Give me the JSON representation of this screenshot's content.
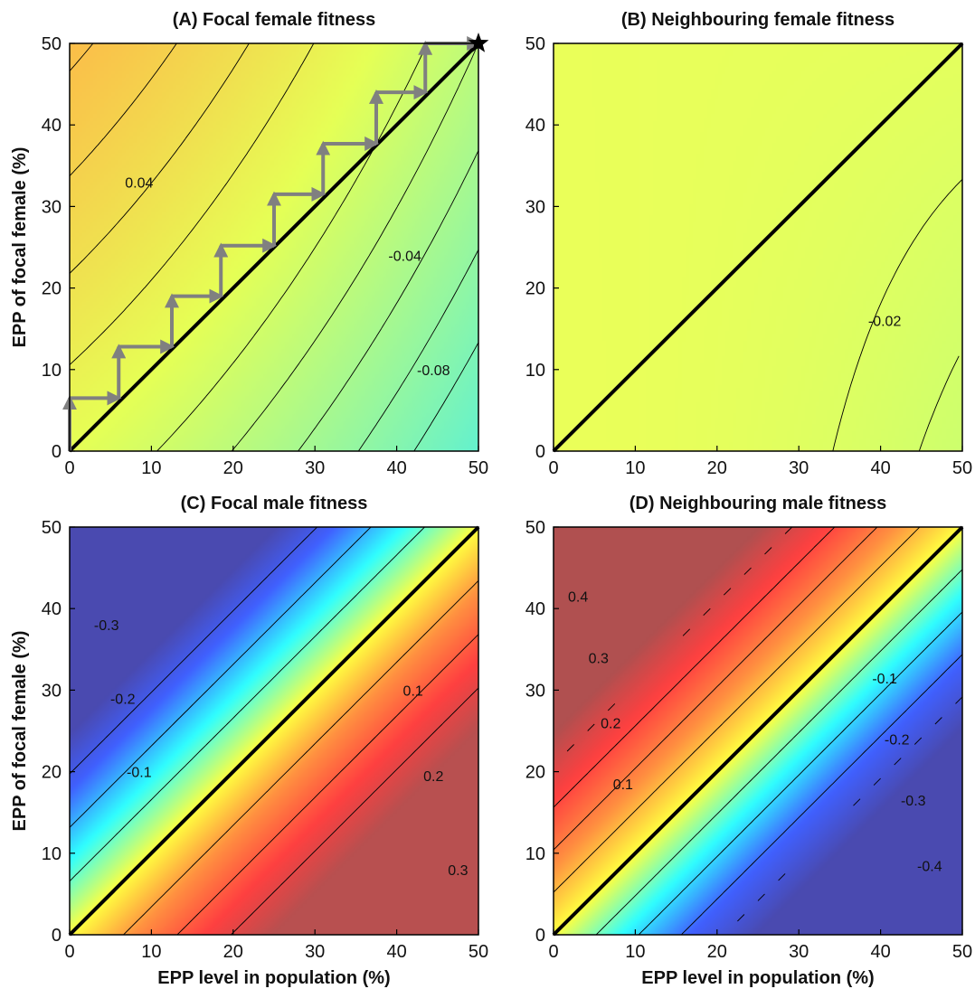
{
  "figure": {
    "x_axis_label": "EPP level in population (%)",
    "y_axis_label": "EPP of focal female (%)"
  },
  "chart_data": [
    {
      "type": "heatmap",
      "panel": "A",
      "title": "(A) Focal female fitness",
      "xlim": [
        0,
        50
      ],
      "ylim": [
        0,
        50
      ],
      "xticks": [
        "0",
        "10",
        "20",
        "30",
        "40",
        "50"
      ],
      "yticks": [
        "0",
        "10",
        "20",
        "30",
        "40",
        "50"
      ],
      "color_stops": [
        {
          "value": 0.1,
          "color": "#FFB347"
        },
        {
          "value": 0.0,
          "color": "#E6FF55"
        },
        {
          "value": -0.14,
          "color": "#55F0DC"
        }
      ],
      "contour_labels": [
        {
          "text": "0.04",
          "x": 8.5,
          "y": 33
        },
        {
          "text": "-0.04",
          "x": 41,
          "y": 24
        },
        {
          "text": "-0.08",
          "x": 44.5,
          "y": 10
        }
      ],
      "diagonal": [
        [
          0,
          0
        ],
        [
          50,
          50
        ]
      ],
      "staircase": [
        [
          0,
          0
        ],
        [
          0,
          6.5
        ],
        [
          6,
          6.5
        ],
        [
          6,
          12.8
        ],
        [
          12.5,
          12.8
        ],
        [
          12.5,
          19
        ],
        [
          18.5,
          19
        ],
        [
          18.5,
          25.2
        ],
        [
          25,
          25.2
        ],
        [
          25,
          31.5
        ],
        [
          31,
          31.5
        ],
        [
          31,
          37.7
        ],
        [
          37.5,
          37.7
        ],
        [
          37.5,
          44
        ],
        [
          43.5,
          44
        ],
        [
          43.5,
          50
        ],
        [
          50,
          50
        ]
      ],
      "endpoint_marker": [
        50,
        50
      ],
      "xlabel": "",
      "ylabel": "EPP of focal female (%)"
    },
    {
      "type": "heatmap",
      "panel": "B",
      "title": "(B) Neighbouring female fitness",
      "xlim": [
        0,
        50
      ],
      "ylim": [
        0,
        50
      ],
      "xticks": [
        "0",
        "10",
        "20",
        "30",
        "40",
        "50"
      ],
      "yticks": [
        "0",
        "10",
        "20",
        "30",
        "40",
        "50"
      ],
      "color_stops": [
        {
          "value": 0.005,
          "color": "#EBFF58"
        },
        {
          "value": -0.03,
          "color": "#C9FF70"
        }
      ],
      "contour_labels": [
        {
          "text": "-0.02",
          "x": 40.5,
          "y": 16
        }
      ],
      "diagonal": [
        [
          0,
          0
        ],
        [
          50,
          50
        ]
      ],
      "xlabel": "",
      "ylabel": ""
    },
    {
      "type": "heatmap",
      "panel": "C",
      "title": "(C) Focal male fitness",
      "xlim": [
        0,
        50
      ],
      "ylim": [
        0,
        50
      ],
      "xticks": [
        "0",
        "10",
        "20",
        "30",
        "40",
        "50"
      ],
      "yticks": [
        "0",
        "10",
        "20",
        "30",
        "40",
        "50"
      ],
      "color_stops": [
        {
          "value": 0.38,
          "color": "#B85050"
        },
        {
          "value": 0.25,
          "color": "#FF4040"
        },
        {
          "value": 0.12,
          "color": "#FF9040"
        },
        {
          "value": 0.0,
          "color": "#FFFF40"
        },
        {
          "value": -0.14,
          "color": "#30FFFF"
        },
        {
          "value": -0.27,
          "color": "#4060FF"
        },
        {
          "value": -0.38,
          "color": "#4A4AB0"
        }
      ],
      "contour_labels": [
        {
          "text": "-0.3",
          "x": 4.5,
          "y": 38
        },
        {
          "text": "-0.2",
          "x": 6.5,
          "y": 29
        },
        {
          "text": "-0.1",
          "x": 8.5,
          "y": 20
        },
        {
          "text": "0.1",
          "x": 42,
          "y": 30
        },
        {
          "text": "0.2",
          "x": 44.5,
          "y": 19.5
        },
        {
          "text": "0.3",
          "x": 47.5,
          "y": 8
        }
      ],
      "diagonal": [
        [
          0,
          0
        ],
        [
          50,
          50
        ]
      ],
      "xlabel": "EPP level in population (%)",
      "ylabel": "EPP of focal female (%)"
    },
    {
      "type": "heatmap",
      "panel": "D",
      "title": "(D) Neighbouring male fitness",
      "xlim": [
        0,
        50
      ],
      "ylim": [
        0,
        50
      ],
      "xticks": [
        "0",
        "10",
        "20",
        "30",
        "40",
        "50"
      ],
      "yticks": [
        "0",
        "10",
        "20",
        "30",
        "40",
        "50"
      ],
      "color_stops": [
        {
          "value": 0.48,
          "color": "#B05050"
        },
        {
          "value": 0.32,
          "color": "#FF4040"
        },
        {
          "value": 0.16,
          "color": "#FF9040"
        },
        {
          "value": 0.0,
          "color": "#FFFF40"
        },
        {
          "value": -0.16,
          "color": "#30FFFF"
        },
        {
          "value": -0.32,
          "color": "#4060FF"
        },
        {
          "value": -0.48,
          "color": "#4A4AB0"
        }
      ],
      "contour_labels": [
        {
          "text": "0.4",
          "x": 3,
          "y": 41.5
        },
        {
          "text": "0.3",
          "x": 5.5,
          "y": 34
        },
        {
          "text": "0.2",
          "x": 7,
          "y": 26
        },
        {
          "text": "0.1",
          "x": 8.5,
          "y": 18.5
        },
        {
          "text": "-0.1",
          "x": 40.5,
          "y": 31.5
        },
        {
          "text": "-0.2",
          "x": 42,
          "y": 24
        },
        {
          "text": "-0.3",
          "x": 44,
          "y": 16.5
        },
        {
          "text": "-0.4",
          "x": 46,
          "y": 8.5
        }
      ],
      "diagonal": [
        [
          0,
          0
        ],
        [
          50,
          50
        ]
      ],
      "xlabel": "EPP level in population (%)",
      "ylabel": ""
    }
  ]
}
